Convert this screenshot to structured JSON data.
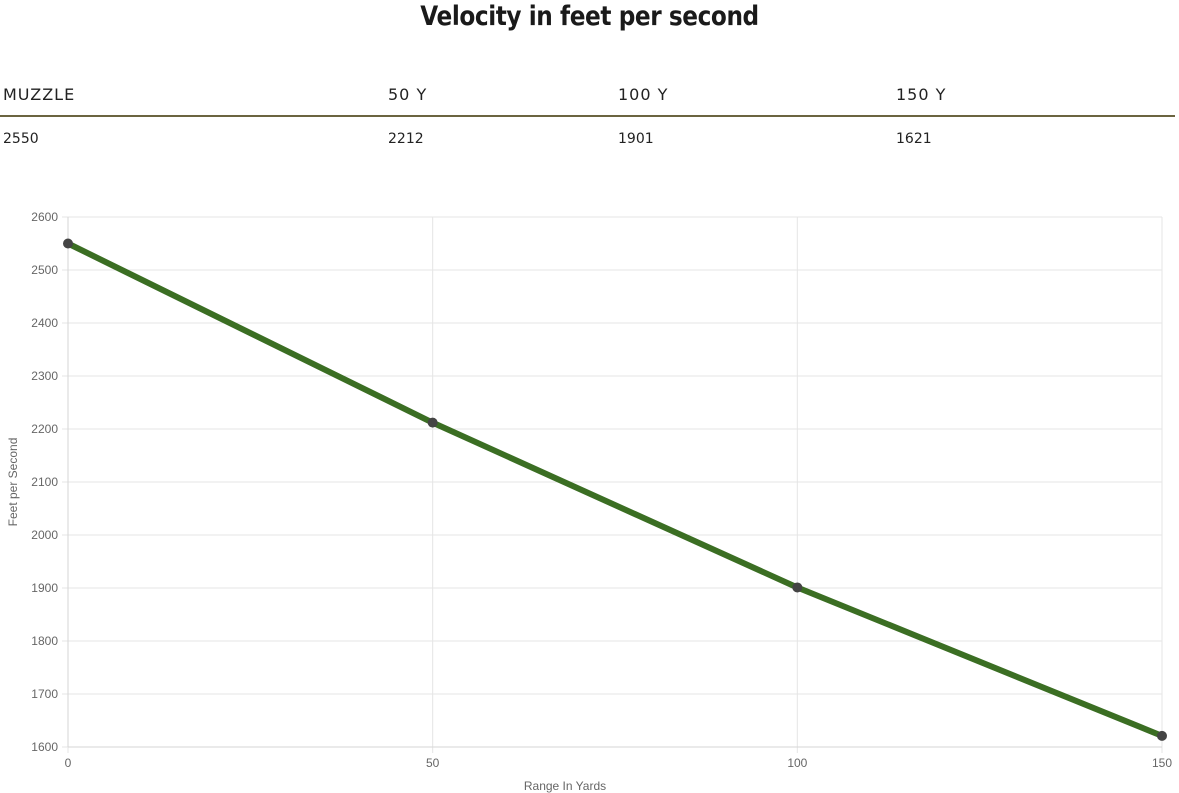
{
  "title": "Velocity in feet per second",
  "table": {
    "headers": [
      "MUZZLE",
      "50 Y",
      "100 Y",
      "150 Y"
    ],
    "values": [
      "2550",
      "2212",
      "1901",
      "1621"
    ]
  },
  "colors": {
    "line": "#3b6e23",
    "point": "#444444",
    "table_rule": "#6b6440",
    "grid": "#e5e5e5"
  },
  "chart_data": {
    "type": "line",
    "x": [
      0,
      50,
      100,
      150
    ],
    "y": [
      2550,
      2212,
      1901,
      1621
    ],
    "xlabel": "Range In Yards",
    "ylabel": "Feet per Second",
    "xlim": [
      0,
      150
    ],
    "ylim": [
      1600,
      2600
    ],
    "xticks": [
      "0",
      "50",
      "100",
      "150"
    ],
    "yticks": [
      "1600",
      "1700",
      "1800",
      "1900",
      "2000",
      "2100",
      "2200",
      "2300",
      "2400",
      "2500",
      "2600"
    ],
    "grid": true,
    "legend": "none"
  }
}
